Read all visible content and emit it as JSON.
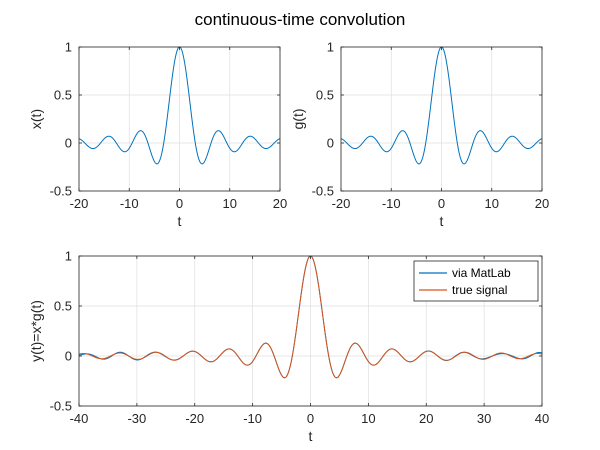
{
  "figure": {
    "title": "continuous-time convolution"
  },
  "colors": {
    "series1": "#0072BD",
    "series2": "#D95319"
  },
  "chart_data": [
    {
      "type": "line",
      "id": "top-left",
      "title": "",
      "xlabel": "t",
      "ylabel": "x(t)",
      "xlim": [
        -20,
        20
      ],
      "ylim": [
        -0.5,
        1
      ],
      "xticks": [
        -20,
        -10,
        0,
        10,
        20
      ],
      "yticks": [
        -0.5,
        0,
        0.5,
        1
      ],
      "grid": true,
      "legend": null,
      "series": [
        {
          "formula": "sin(t)/t",
          "t_range": [
            -20,
            20
          ],
          "color": "#0072BD"
        }
      ]
    },
    {
      "type": "line",
      "id": "top-right",
      "title": "",
      "xlabel": "t",
      "ylabel": "g(t)",
      "xlim": [
        -20,
        20
      ],
      "ylim": [
        -0.5,
        1
      ],
      "xticks": [
        -20,
        -10,
        0,
        10,
        20
      ],
      "yticks": [
        -0.5,
        0,
        0.5,
        1
      ],
      "grid": true,
      "legend": null,
      "series": [
        {
          "formula": "sin(t)/t",
          "t_range": [
            -20,
            20
          ],
          "color": "#0072BD"
        }
      ]
    },
    {
      "type": "line",
      "id": "bottom",
      "title": "",
      "xlabel": "t",
      "ylabel": "y(t)=x*g(t)",
      "xlim": [
        -40,
        40
      ],
      "ylim": [
        -0.5,
        1
      ],
      "xticks": [
        -40,
        -30,
        -20,
        -10,
        0,
        10,
        20,
        30,
        40
      ],
      "yticks": [
        -0.5,
        0,
        0.5,
        1
      ],
      "grid": true,
      "legend": "top-right",
      "series": [
        {
          "name": "via MatLab",
          "formula": "sin(t)/t, truncated conv",
          "t_range": [
            -40,
            40
          ],
          "color": "#0072BD"
        },
        {
          "name": "true signal",
          "formula": "sin(t)/t",
          "t_range": [
            -40,
            40
          ],
          "color": "#D95319"
        }
      ]
    }
  ]
}
